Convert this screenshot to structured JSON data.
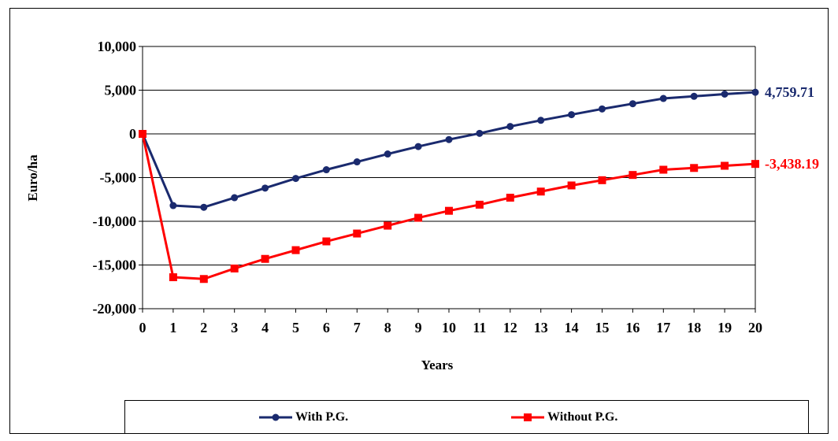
{
  "chart_data": {
    "type": "line",
    "title": "",
    "xlabel": "Years",
    "ylabel": "Euro/ha",
    "x": [
      0,
      1,
      2,
      3,
      4,
      5,
      6,
      7,
      8,
      9,
      10,
      11,
      12,
      13,
      14,
      15,
      16,
      17,
      18,
      19,
      20
    ],
    "x_tick_labels": [
      "0",
      "1",
      "2",
      "3",
      "4",
      "5",
      "6",
      "7",
      "8",
      "9",
      "10",
      "11",
      "12",
      "13",
      "14",
      "15",
      "16",
      "17",
      "18",
      "19",
      "20"
    ],
    "ylim": [
      -20000,
      10000
    ],
    "y_ticks": [
      10000,
      5000,
      0,
      -5000,
      -10000,
      -15000,
      -20000
    ],
    "y_tick_labels": [
      "10,000",
      "5,000",
      "0",
      "-5,000",
      "-10,000",
      "-15,000",
      "-20,000"
    ],
    "grid": "horizontal",
    "legend_position": "bottom",
    "series": [
      {
        "name": "With P.G.",
        "color": "#1a2a6e",
        "marker": "circle",
        "values": [
          0,
          -8200,
          -8400,
          -7300,
          -6200,
          -5100,
          -4100,
          -3200,
          -2300,
          -1450,
          -650,
          60,
          850,
          1550,
          2200,
          2850,
          3450,
          4050,
          4300,
          4550,
          4759.71
        ],
        "end_label": "4,759.71"
      },
      {
        "name": "Without P.G.",
        "color": "#ff0000",
        "marker": "square",
        "values": [
          0,
          -16400,
          -16600,
          -15400,
          -14300,
          -13300,
          -12300,
          -11400,
          -10500,
          -9600,
          -8800,
          -8100,
          -7300,
          -6600,
          -5900,
          -5300,
          -4700,
          -4100,
          -3900,
          -3650,
          -3438.19
        ],
        "end_label": "-3,438.19"
      }
    ]
  }
}
